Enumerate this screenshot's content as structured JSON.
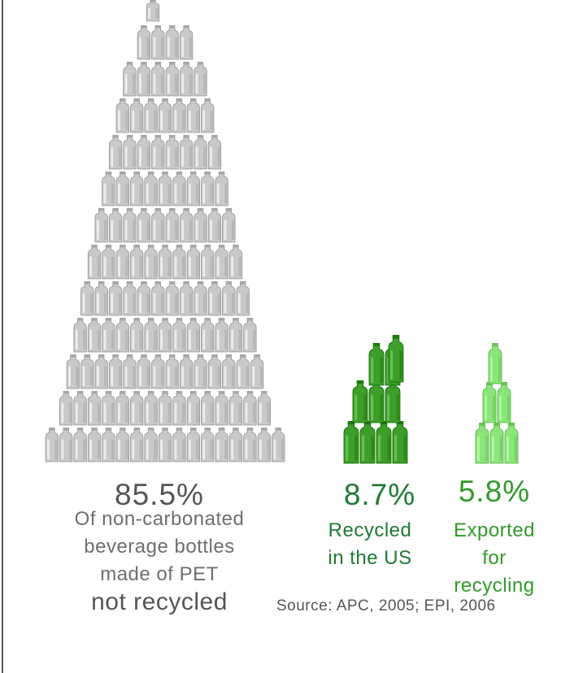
{
  "chart_data": {
    "type": "pictograph",
    "series": [
      {
        "name": "not recycled",
        "percent": 85.5,
        "value_label": "85.5%",
        "caption": [
          "Of non-carbonated",
          "beverage bottles",
          "made of PET",
          "not recycled"
        ],
        "color": "#c9c9c9"
      },
      {
        "name": "Recycled in the US",
        "percent": 8.7,
        "value_label": "8.7%",
        "caption": [
          "Recycled",
          "in the US"
        ],
        "color": "#3f9e2a"
      },
      {
        "name": "Exported for recycling",
        "percent": 5.8,
        "value_label": "5.8%",
        "caption": [
          "Exported",
          "for",
          "recycling"
        ],
        "color": "#8be57a"
      }
    ],
    "source": "Source: APC, 2005; EPI, 2006"
  },
  "colors": {
    "grey_text": "#555555",
    "grey_caption": "#6e6e6e",
    "dark_green_text": "#1f7a34",
    "green_text": "#2f9a2a"
  }
}
